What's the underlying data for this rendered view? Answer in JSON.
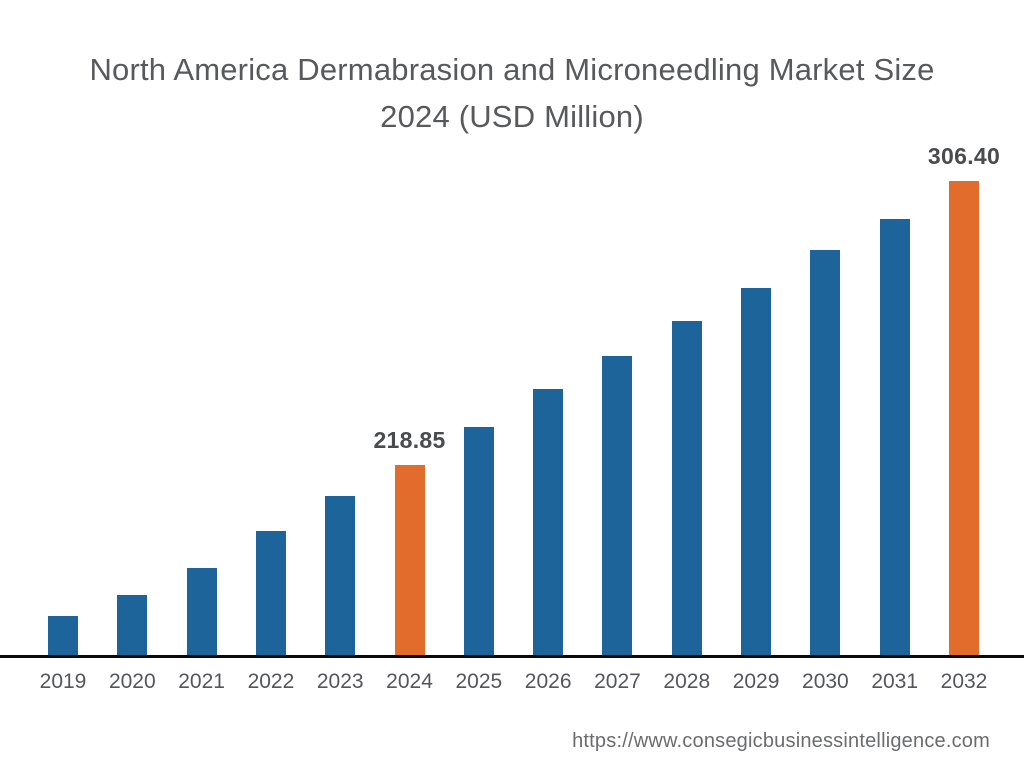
{
  "title": {
    "line1": "North America Dermabrasion and Microneedling Market Size",
    "line2": "2024 (USD Million)"
  },
  "footer": {
    "url": "https://www.consegicbusinessintelligence.com"
  },
  "chart_data": {
    "type": "bar",
    "title": "North America Dermabrasion and Microneedling Market Size 2024 (USD Million)",
    "unit": "USD Million",
    "categories": [
      "2019",
      "2020",
      "2021",
      "2022",
      "2023",
      "2024",
      "2025",
      "2026",
      "2027",
      "2028",
      "2029",
      "2030",
      "2031",
      "2032"
    ],
    "series": [
      {
        "name": "Market Size (USD Million)",
        "values": [
          172.3,
          178.8,
          187.1,
          198.5,
          209.2,
          218.85,
          230.6,
          242.3,
          252.5,
          263.3,
          273.5,
          285.2,
          294.7,
          306.4
        ]
      }
    ],
    "labeled_values": {
      "2024": "218.85",
      "2032": "306.40"
    },
    "highlighted_categories": [
      "2024",
      "2032"
    ],
    "bar_color": "#1C6499",
    "highlight_color": "#E16C2C",
    "axis_line_color": "#0a0a0a",
    "ylim": [
      160,
      320
    ],
    "grid": false,
    "legend": "none",
    "xlabel": "",
    "ylabel": ""
  }
}
